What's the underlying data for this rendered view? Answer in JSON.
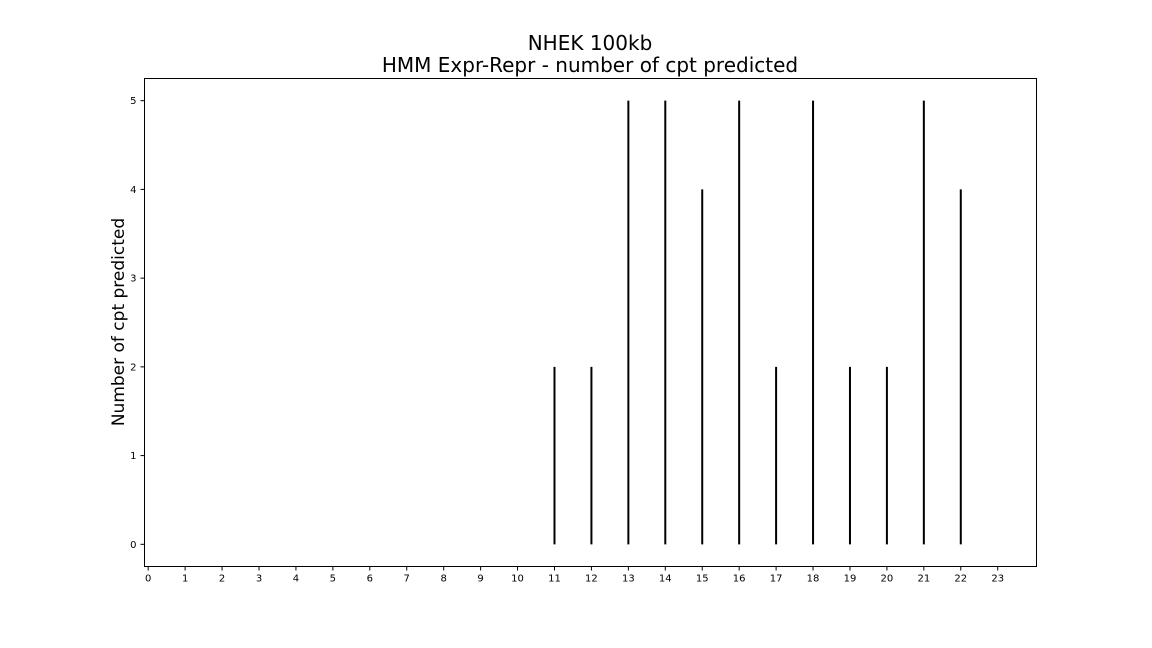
{
  "chart_data": {
    "type": "bar",
    "title_line1": "NHEK 100kb",
    "title_line2": "HMM Expr-Repr - number of cpt predicted",
    "xlabel": "",
    "ylabel": "Number of cpt predicted",
    "x": [
      11,
      12,
      13,
      14,
      15,
      16,
      17,
      18,
      19,
      20,
      21,
      22
    ],
    "values": [
      2,
      2,
      5,
      5,
      4,
      5,
      2,
      5,
      2,
      2,
      5,
      4
    ],
    "xticks": [
      "0",
      "1",
      "2",
      "3",
      "4",
      "5",
      "6",
      "7",
      "8",
      "9",
      "10",
      "11",
      "12",
      "13",
      "14",
      "15",
      "16",
      "17",
      "18",
      "19",
      "20",
      "21",
      "22",
      "23"
    ],
    "yticks": [
      "0",
      "1",
      "2",
      "3",
      "4",
      "5"
    ],
    "xlim": [
      -0.1,
      24.05
    ],
    "ylim": [
      -0.25,
      5.25
    ],
    "grid": false,
    "bar_color": "#000000"
  }
}
